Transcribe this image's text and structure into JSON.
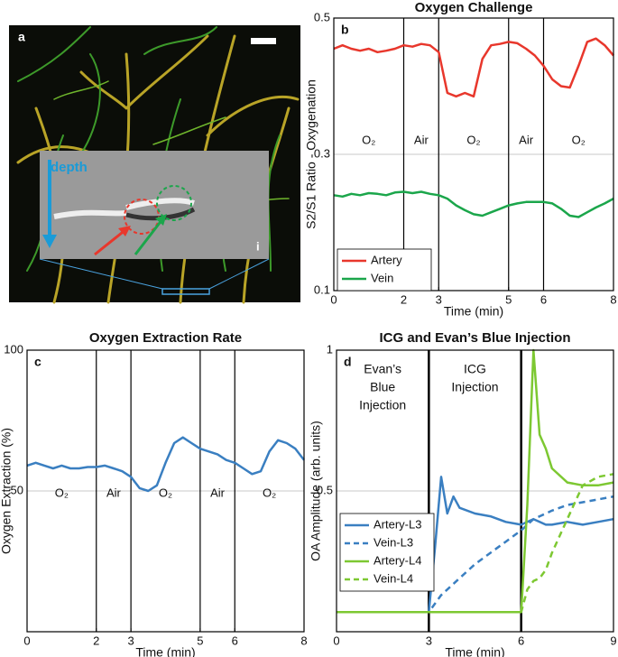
{
  "image_panel": {
    "panel_label": "a",
    "depth_label": "depth",
    "inset_label": "i"
  },
  "chart_data": [
    {
      "type": "line",
      "panel_label": "b",
      "title": "Oxygen Challenge",
      "x_label": "Time (min)",
      "y_label": "S2/S1 Ratio - Oxygenation",
      "xlim": [
        0,
        8
      ],
      "xticks": [
        0,
        2,
        3,
        5,
        6,
        8
      ],
      "ylim": [
        0.1,
        0.5
      ],
      "yticks": [
        0.1,
        0.3,
        0.5
      ],
      "grid": true,
      "legend": "lower left",
      "phase_lines": [
        2,
        3,
        5,
        6
      ],
      "phase_labels": [
        "O₂",
        "Air",
        "O₂",
        "Air",
        "O₂"
      ],
      "x": [
        0,
        0.25,
        0.5,
        0.75,
        1,
        1.25,
        1.5,
        1.75,
        2,
        2.25,
        2.5,
        2.75,
        3,
        3.25,
        3.5,
        3.75,
        4,
        4.25,
        4.5,
        4.75,
        5,
        5.25,
        5.5,
        5.75,
        6,
        6.25,
        6.5,
        6.75,
        7,
        7.25,
        7.5,
        7.75,
        8
      ],
      "series": [
        {
          "name": "Artery",
          "color": "#e8372c",
          "style": "solid",
          "values": [
            0.455,
            0.46,
            0.455,
            0.452,
            0.455,
            0.45,
            0.452,
            0.455,
            0.46,
            0.458,
            0.462,
            0.46,
            0.45,
            0.39,
            0.385,
            0.39,
            0.385,
            0.44,
            0.46,
            0.462,
            0.465,
            0.463,
            0.455,
            0.445,
            0.43,
            0.41,
            0.4,
            0.398,
            0.43,
            0.465,
            0.47,
            0.46,
            0.445
          ]
        },
        {
          "name": "Vein",
          "color": "#1ba64b",
          "style": "solid",
          "values": [
            0.24,
            0.238,
            0.242,
            0.24,
            0.243,
            0.242,
            0.24,
            0.244,
            0.245,
            0.243,
            0.245,
            0.242,
            0.24,
            0.235,
            0.225,
            0.218,
            0.212,
            0.21,
            0.215,
            0.22,
            0.225,
            0.228,
            0.23,
            0.23,
            0.23,
            0.228,
            0.22,
            0.21,
            0.208,
            0.215,
            0.222,
            0.228,
            0.235
          ]
        }
      ]
    },
    {
      "type": "line",
      "panel_label": "c",
      "title": "Oxygen Extraction Rate",
      "x_label": "Time (min)",
      "y_label": "Oxygen Extraction (%)",
      "xlim": [
        0,
        8
      ],
      "xticks": [
        0,
        2,
        3,
        5,
        6,
        8
      ],
      "ylim": [
        0,
        100
      ],
      "yticks": [
        50,
        100
      ],
      "grid": true,
      "phase_lines": [
        2,
        3,
        5,
        6
      ],
      "phase_labels": [
        "O₂",
        "Air",
        "O₂",
        "Air",
        "O₂"
      ],
      "x": [
        0,
        0.25,
        0.5,
        0.75,
        1,
        1.25,
        1.5,
        1.75,
        2,
        2.25,
        2.5,
        2.75,
        3,
        3.25,
        3.5,
        3.75,
        4,
        4.25,
        4.5,
        4.75,
        5,
        5.25,
        5.5,
        5.75,
        6,
        6.25,
        6.5,
        6.75,
        7,
        7.25,
        7.5,
        7.75,
        8
      ],
      "series": [
        {
          "color": "#3a7fc1",
          "style": "solid",
          "values": [
            59,
            60,
            59,
            58,
            59,
            58,
            58,
            58.5,
            58.5,
            59,
            58,
            57,
            55,
            51,
            50,
            52,
            60,
            67,
            69,
            67,
            65,
            64,
            63,
            61,
            60,
            58,
            56,
            57,
            64,
            68,
            67,
            65,
            61
          ]
        }
      ]
    },
    {
      "type": "line",
      "panel_label": "d",
      "title": "ICG and Evan’s Blue Injection",
      "x_label": "Time (min)",
      "y_label": "OA Amplitude (arb. units)",
      "xlim": [
        0,
        9
      ],
      "xticks": [
        0,
        3,
        6,
        9
      ],
      "ylim": [
        0,
        1
      ],
      "yticks": [
        0.5,
        1
      ],
      "grid": true,
      "legend": "center left",
      "injection_lines": [
        3,
        6
      ],
      "annotations": [
        {
          "lines": [
            "Evan’s",
            "Blue",
            "Injection"
          ]
        },
        {
          "lines": [
            "ICG",
            "Injection"
          ]
        }
      ],
      "x": [
        0,
        1,
        2,
        3,
        3.2,
        3.4,
        3.6,
        3.8,
        4,
        4.5,
        5,
        5.5,
        6,
        6.2,
        6.4,
        6.6,
        6.8,
        7,
        7.5,
        8,
        8.5,
        9
      ],
      "series": [
        {
          "name": "Artery-L3",
          "color": "#3a7fc1",
          "style": "solid",
          "values": [
            0.07,
            0.07,
            0.07,
            0.07,
            0.3,
            0.55,
            0.42,
            0.48,
            0.44,
            0.42,
            0.41,
            0.39,
            0.38,
            0.39,
            0.4,
            0.39,
            0.38,
            0.38,
            0.39,
            0.38,
            0.39,
            0.4
          ]
        },
        {
          "name": "Vein-L3",
          "color": "#3a7fc1",
          "style": "dashed",
          "values": [
            0.07,
            0.07,
            0.07,
            0.07,
            0.1,
            0.13,
            0.15,
            0.17,
            0.19,
            0.24,
            0.28,
            0.32,
            0.36,
            0.38,
            0.4,
            0.41,
            0.42,
            0.43,
            0.45,
            0.46,
            0.47,
            0.48
          ]
        },
        {
          "name": "Artery-L4",
          "color": "#7dc832",
          "style": "solid",
          "values": [
            0.07,
            0.07,
            0.07,
            0.07,
            0.07,
            0.07,
            0.07,
            0.07,
            0.07,
            0.07,
            0.07,
            0.07,
            0.07,
            0.45,
            1.0,
            0.7,
            0.65,
            0.58,
            0.53,
            0.52,
            0.52,
            0.53
          ]
        },
        {
          "name": "Vein-L4",
          "color": "#7dc832",
          "style": "dashed",
          "values": [
            0.07,
            0.07,
            0.07,
            0.07,
            0.07,
            0.07,
            0.07,
            0.07,
            0.07,
            0.07,
            0.07,
            0.07,
            0.07,
            0.15,
            0.18,
            0.19,
            0.22,
            0.28,
            0.4,
            0.52,
            0.55,
            0.56
          ]
        }
      ]
    }
  ]
}
